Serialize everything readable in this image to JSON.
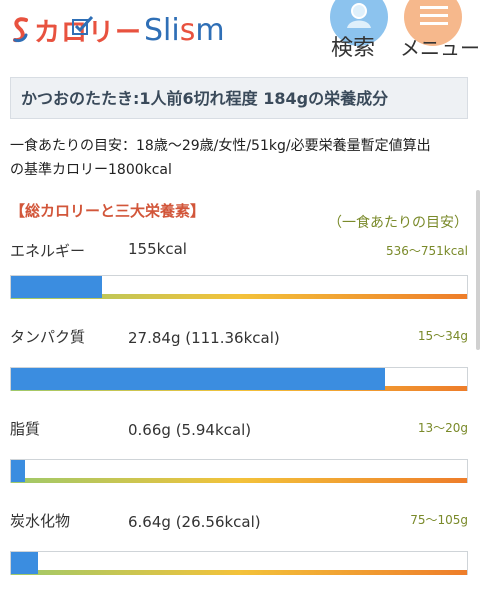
{
  "header": {
    "logo_kana": "カロリー",
    "logo_en_pre": "Sli",
    "logo_en_s": "s",
    "logo_en_post": "m",
    "search_label": "検索",
    "menu_label": "メニュー",
    "search_icon": "person-icon",
    "menu_icon": "hamburger-icon"
  },
  "title": "かつおのたたき:1人前6切れ程度 184gの栄養成分",
  "note_line1": "一食あたりの目安：18歳〜29歳/女性/51kg/必要栄養量暫定値算出",
  "note_line2": "の基準カロリー1800kcal",
  "section": {
    "title": "【総カロリーと三大栄養素】",
    "sub": "（一食あたりの目安）"
  },
  "rows": [
    {
      "label": "エネルギー",
      "value": "155kcal",
      "range": "536〜751kcal",
      "fill_pct": 20
    },
    {
      "label": "タンパク質",
      "value": "27.84g (111.36kcal)",
      "range": "15〜34g",
      "fill_pct": 82
    },
    {
      "label": "脂質",
      "value": "0.66g (5.94kcal)",
      "range": "13〜20g",
      "fill_pct": 3
    },
    {
      "label": "炭水化物",
      "value": "6.64g (26.56kcal)",
      "range": "75〜105g",
      "fill_pct": 6
    }
  ],
  "colors": {
    "accent_red": "#e8523f",
    "accent_blue": "#2f6fb6",
    "bar_fill": "#3b8de0",
    "range_text": "#7a8a2a"
  }
}
